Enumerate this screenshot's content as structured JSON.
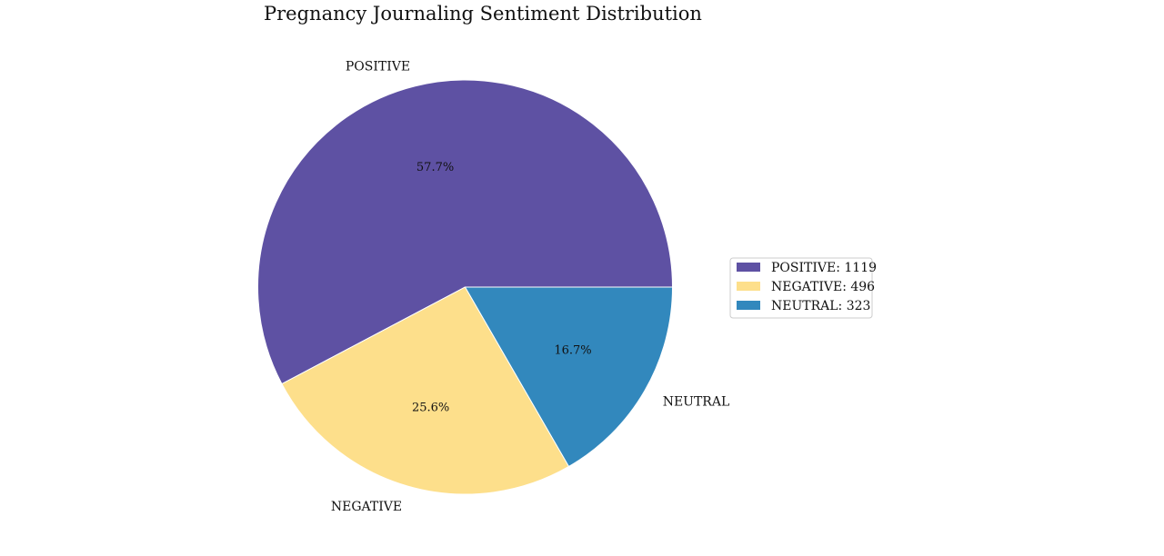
{
  "chart_data": {
    "type": "pie",
    "title": "Pregnancy Journaling Sentiment Distribution",
    "categories": [
      "POSITIVE",
      "NEGATIVE",
      "NEUTRAL"
    ],
    "values": [
      1119,
      496,
      323
    ],
    "percent_labels": [
      "57.7%",
      "25.6%",
      "16.7%"
    ],
    "colors": [
      "#5e51a3",
      "#fddf8b",
      "#3288bd"
    ],
    "legend": {
      "placement": "right",
      "entries": [
        "POSITIVE: 1119",
        "NEGATIVE: 496",
        "NEUTRAL: 323"
      ]
    }
  }
}
